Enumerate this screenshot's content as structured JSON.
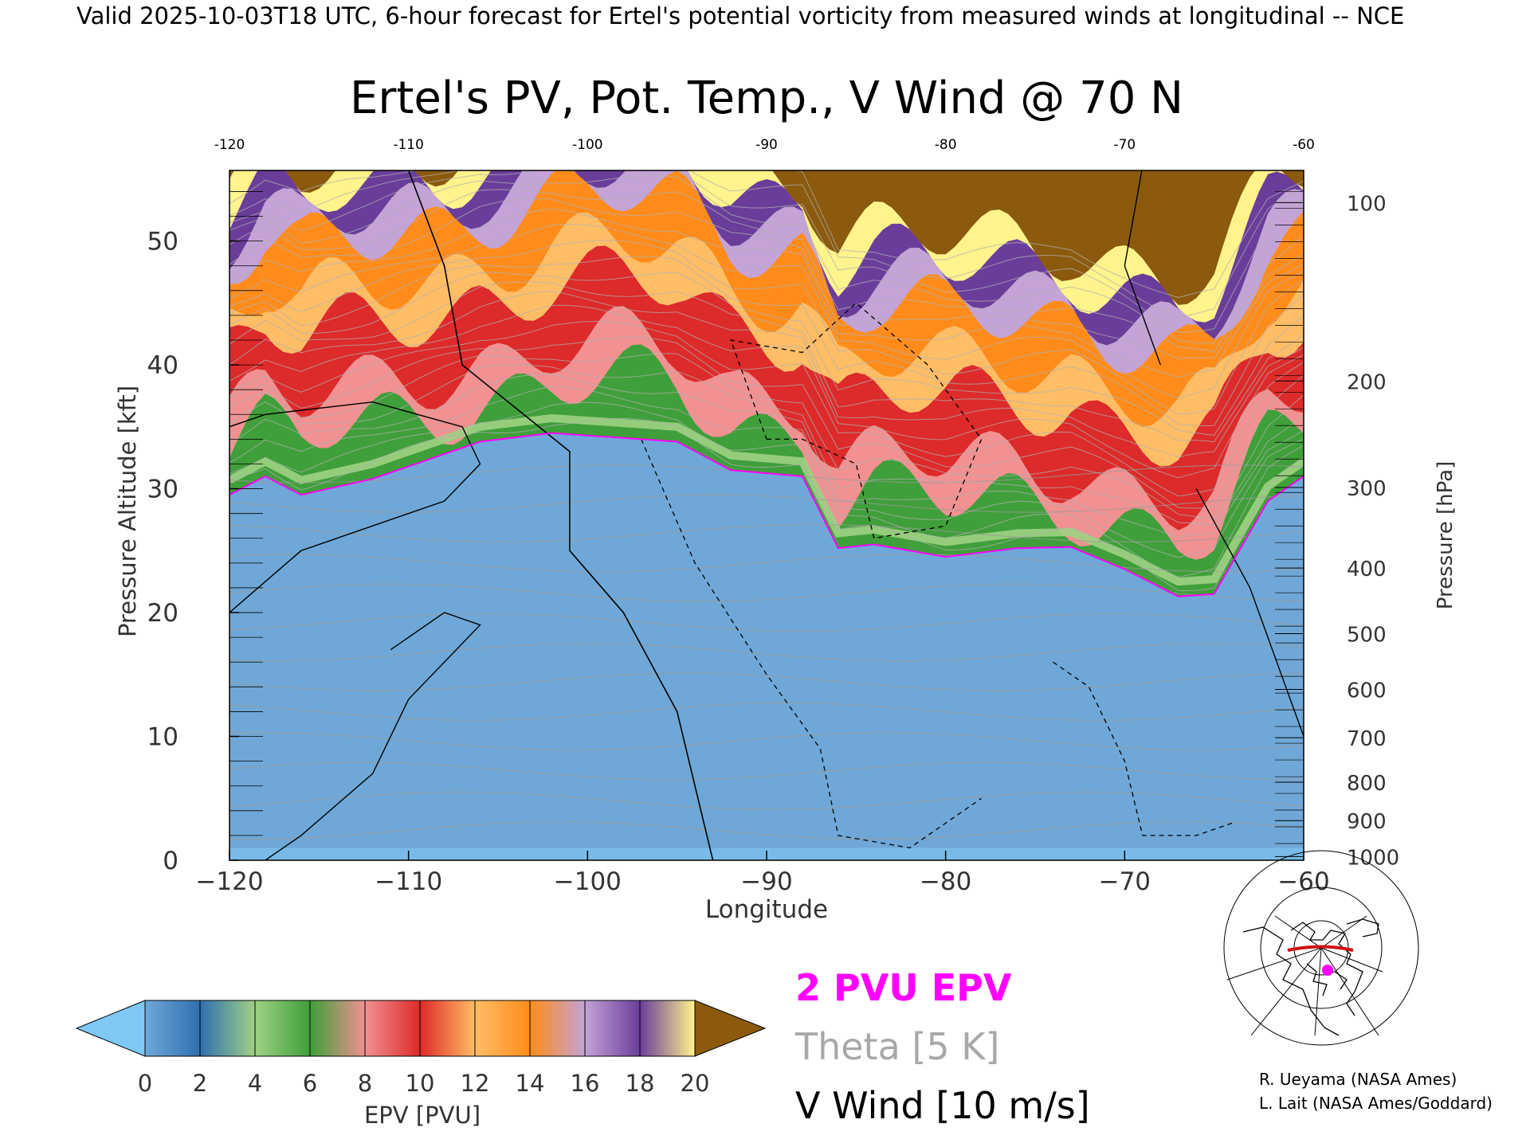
{
  "header": {
    "valid_line": "Valid 2025-10-03T18 UTC, 6-hour forecast for Ertel's potential vorticity from measured winds at longitudinal -- NCE"
  },
  "chart_data": {
    "type": "heatmap",
    "title": "Ertel's PV, Pot. Temp., V Wind @ 70 N",
    "xlabel": "Longitude",
    "ylabel": "Pressure Altitude [kft]",
    "y2label": "Pressure [hPa]",
    "xlim": [
      -120,
      -60
    ],
    "ylim": [
      0,
      55.7
    ],
    "xticks": [
      "-120",
      "-110",
      "-100",
      "-90",
      "-80",
      "-70",
      "-60"
    ],
    "xticks_top": [
      "-120",
      "-110",
      "-100",
      "-90",
      "-80",
      "-70",
      "-60"
    ],
    "yticks": [
      "0",
      "10",
      "20",
      "30",
      "40",
      "50"
    ],
    "pressure_ticks": [
      {
        "hpa": "1000",
        "kft": 0.3
      },
      {
        "hpa": "900",
        "kft": 3.2
      },
      {
        "hpa": "800",
        "kft": 6.3
      },
      {
        "hpa": "700",
        "kft": 9.9
      },
      {
        "hpa": "600",
        "kft": 13.8
      },
      {
        "hpa": "500",
        "kft": 18.3
      },
      {
        "hpa": "400",
        "kft": 23.6
      },
      {
        "hpa": "300",
        "kft": 30.1
      },
      {
        "hpa": "200",
        "kft": 38.7
      },
      {
        "hpa": "100",
        "kft": 53.1
      }
    ],
    "colorbar": {
      "label": "EPV [PVU]",
      "ticks": [
        "0",
        "2",
        "4",
        "6",
        "8",
        "10",
        "12",
        "14",
        "16",
        "18",
        "20"
      ],
      "colors": [
        "#6fa8d8",
        "#2f6fb0",
        "#9fd183",
        "#3f9f3a",
        "#f19191",
        "#dd2a2a",
        "#ffbd66",
        "#ff8c1a",
        "#c4a3d6",
        "#6a3d9a",
        "#fff38c",
        "#8b5a0e"
      ],
      "under_color": "#7ec8f5",
      "over_color": "#8b5a0e"
    },
    "tropopause_2pvu_kft": [
      {
        "lon": -120,
        "kft": 29.5
      },
      {
        "lon": -118,
        "kft": 31.0
      },
      {
        "lon": -116,
        "kft": 29.5
      },
      {
        "lon": -112,
        "kft": 30.8
      },
      {
        "lon": -106,
        "kft": 33.8
      },
      {
        "lon": -102,
        "kft": 34.5
      },
      {
        "lon": -95,
        "kft": 33.8
      },
      {
        "lon": -92,
        "kft": 31.5
      },
      {
        "lon": -88,
        "kft": 31.0
      },
      {
        "lon": -86,
        "kft": 25.2
      },
      {
        "lon": -84,
        "kft": 25.5
      },
      {
        "lon": -80,
        "kft": 24.5
      },
      {
        "lon": -76,
        "kft": 25.2
      },
      {
        "lon": -73,
        "kft": 25.3
      },
      {
        "lon": -70,
        "kft": 23.5
      },
      {
        "lon": -67,
        "kft": 21.3
      },
      {
        "lon": -65,
        "kft": 21.5
      },
      {
        "lon": -62,
        "kft": 29.0
      },
      {
        "lon": -60,
        "kft": 31.0
      }
    ],
    "v_wind_zero_contour": [
      {
        "lon": -110,
        "kft": 55.7
      },
      {
        "lon": -108,
        "kft": 48.0
      },
      {
        "lon": -107,
        "kft": 40.0
      },
      {
        "lon": -101,
        "kft": 33.0
      },
      {
        "lon": -101,
        "kft": 25.0
      },
      {
        "lon": -98,
        "kft": 20.0
      },
      {
        "lon": -95,
        "kft": 12.0
      },
      {
        "lon": -94,
        "kft": 6.0
      },
      {
        "lon": -93,
        "kft": 0.0
      }
    ],
    "legend": [
      {
        "label": "2 PVU EPV",
        "color": "#ff00ff"
      },
      {
        "label": "Theta [5 K]",
        "color": "#a8a8a8"
      },
      {
        "label": "V Wind [10 m/s]",
        "color": "#000000"
      }
    ],
    "credits": [
      "R. Ueyama (NASA Ames)",
      "L. Lait (NASA Ames/Goddard)"
    ]
  }
}
